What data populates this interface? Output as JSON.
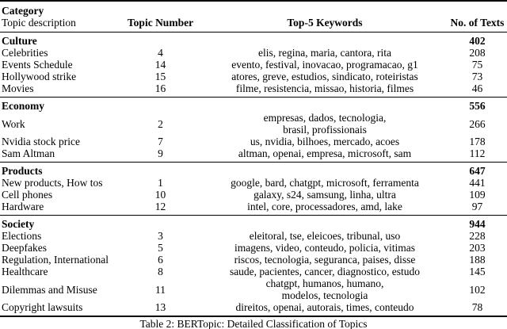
{
  "table": {
    "header": {
      "col1_line1": "Category",
      "col1_line2": "Topic description",
      "col2": "Topic Number",
      "col3": "Top-5 Keywords",
      "col4": "No. of Texts"
    },
    "groups": [
      {
        "name": "Culture",
        "total": "402",
        "rows": [
          {
            "topic": "Celebrities",
            "number": "4",
            "keywords": "elis, regina, maria, cantora, rita",
            "texts": "208"
          },
          {
            "topic": "Events Schedule",
            "number": "14",
            "keywords": "evento, festival, inovacao, programacao, g1",
            "texts": "75"
          },
          {
            "topic": "Hollywood strike",
            "number": "15",
            "keywords": "atores, greve, estudios, sindicato, roteiristas",
            "texts": "73"
          },
          {
            "topic": "Movies",
            "number": "16",
            "keywords": "filme, resistencia, missao, historia, filmes",
            "texts": "46"
          }
        ]
      },
      {
        "name": "Economy",
        "total": "556",
        "rows": [
          {
            "topic": "Work",
            "number": "2",
            "keywords": "empresas, dados, tecnologia,\nbrasil, profissionais",
            "texts": "266"
          },
          {
            "topic": "Nvidia stock price",
            "number": "7",
            "keywords": "us, nvidia, bilhoes, mercado, acoes",
            "texts": "178"
          },
          {
            "topic": "Sam Altman",
            "number": "9",
            "keywords": "altman, openai, empresa, microsoft, sam",
            "texts": "112"
          }
        ]
      },
      {
        "name": "Products",
        "total": "647",
        "rows": [
          {
            "topic": "New products, How tos",
            "number": "1",
            "keywords": "google, bard, chatgpt, microsoft, ferramenta",
            "texts": "441"
          },
          {
            "topic": "Cell phones",
            "number": "10",
            "keywords": "galaxy, s24, samsung, linha, ultra",
            "texts": "109"
          },
          {
            "topic": "Hardware",
            "number": "12",
            "keywords": "intel, core, processadores, amd, lake",
            "texts": "97"
          }
        ]
      },
      {
        "name": "Society",
        "total": "944",
        "rows": [
          {
            "topic": "Elections",
            "number": "3",
            "keywords": "eleitoral, tse, eleicoes, tribunal, uso",
            "texts": "228"
          },
          {
            "topic": "Deepfakes",
            "number": "5",
            "keywords": "imagens, video, conteudo, policia, vitimas",
            "texts": "203"
          },
          {
            "topic": "Regulation, International",
            "number": "6",
            "keywords": "riscos, tecnologia, seguranca, paises, disse",
            "texts": "188"
          },
          {
            "topic": "Healthcare",
            "number": "8",
            "keywords": "saude, pacientes, cancer, diagnostico, estudo",
            "texts": "145"
          },
          {
            "topic": "Dilemmas and Misuse",
            "number": "11",
            "keywords": "chatgpt, humanos, humano,\nmodelos, tecnologia",
            "texts": "102"
          },
          {
            "topic": "Copyright lawsuits",
            "number": "13",
            "keywords": "direitos, openai, autorais, times, conteudo",
            "texts": "78"
          }
        ]
      }
    ],
    "caption": "Table 2: BERTopic: Detailed Classification of Topics"
  }
}
